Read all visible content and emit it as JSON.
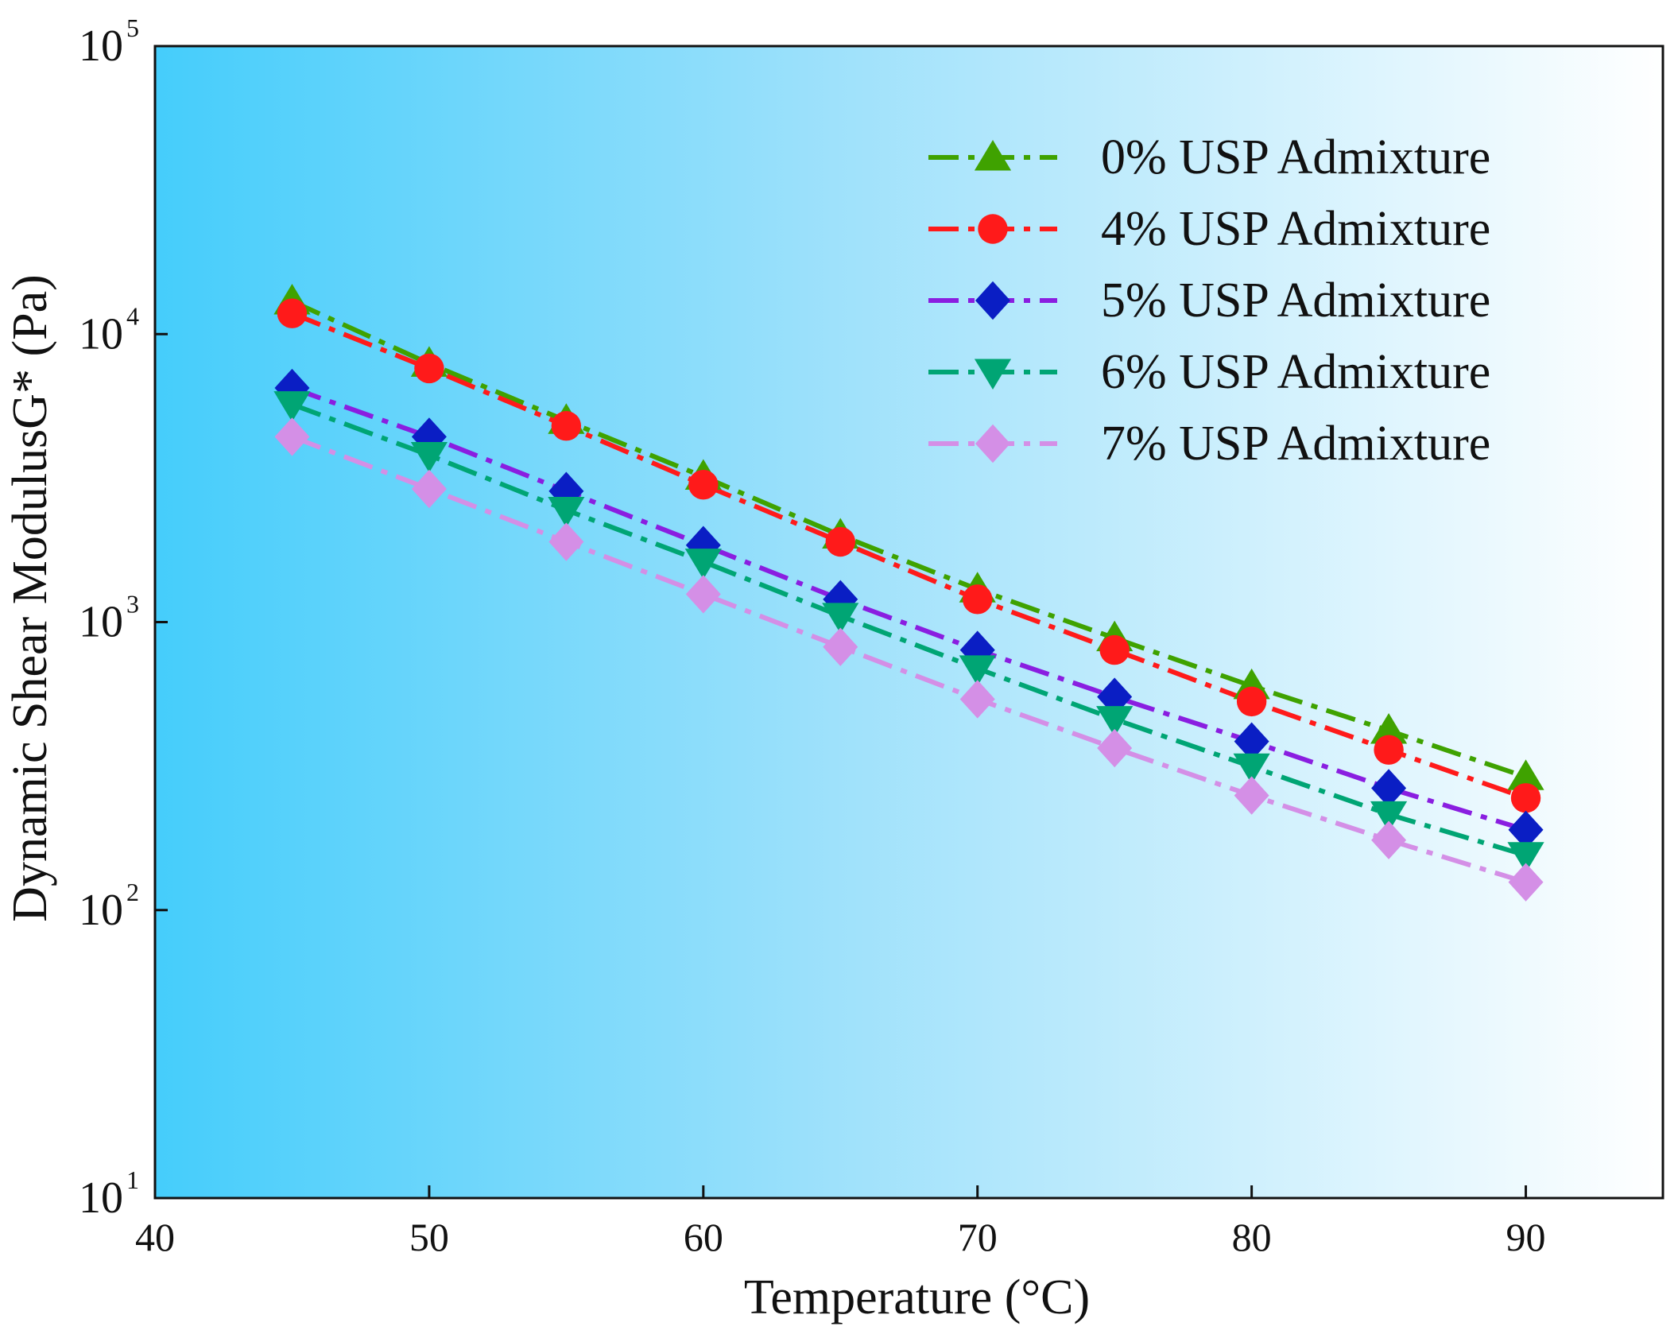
{
  "chart_data": {
    "type": "line",
    "title": "",
    "xlabel": "Temperature (°C)",
    "ylabel": "Dynamic Shear ModulusG* (Pa)",
    "xlim": [
      40,
      95
    ],
    "ylim": [
      10,
      100000
    ],
    "yscale": "log",
    "grid": false,
    "legend_position": "top-right",
    "x_ticks": [
      40,
      50,
      60,
      70,
      80,
      90
    ],
    "x_tick_labels": [
      "40",
      "50",
      "60",
      "70",
      "80",
      "90"
    ],
    "y_ticks": [
      {
        "value": 10,
        "base": "10",
        "exp": "1"
      },
      {
        "value": 100,
        "base": "10",
        "exp": "2"
      },
      {
        "value": 1000,
        "base": "10",
        "exp": "3"
      },
      {
        "value": 10000,
        "base": "10",
        "exp": "4"
      },
      {
        "value": 100000,
        "base": "10",
        "exp": "5"
      }
    ],
    "x": [
      45,
      50,
      55,
      60,
      65,
      70,
      75,
      80,
      85,
      90
    ],
    "series": [
      {
        "name": "0% USP Admixture",
        "color": "#3fa200",
        "marker": "triangle-up",
        "values": [
          13000,
          7900,
          5000,
          3200,
          2000,
          1300,
          880,
          600,
          420,
          290
        ]
      },
      {
        "name": "4% USP Admixture",
        "color": "#ff1a1a",
        "marker": "circle",
        "values": [
          11800,
          7600,
          4800,
          3000,
          1900,
          1200,
          800,
          530,
          360,
          245
        ]
      },
      {
        "name": "5% USP Admixture",
        "color": "#0a1ec4",
        "line_color": "#8a1ee0",
        "marker": "diamond",
        "values": [
          6500,
          4400,
          2850,
          1850,
          1200,
          800,
          550,
          385,
          265,
          190
        ]
      },
      {
        "name": "6% USP Admixture",
        "color": "#00a574",
        "marker": "triangle-down",
        "values": [
          5700,
          3800,
          2450,
          1620,
          1050,
          690,
          460,
          315,
          215,
          155
        ]
      },
      {
        "name": "7% USP Admixture",
        "color": "#d48fe6",
        "marker": "diamond",
        "values": [
          4400,
          2900,
          1900,
          1250,
          820,
          540,
          365,
          250,
          175,
          125
        ]
      }
    ]
  }
}
